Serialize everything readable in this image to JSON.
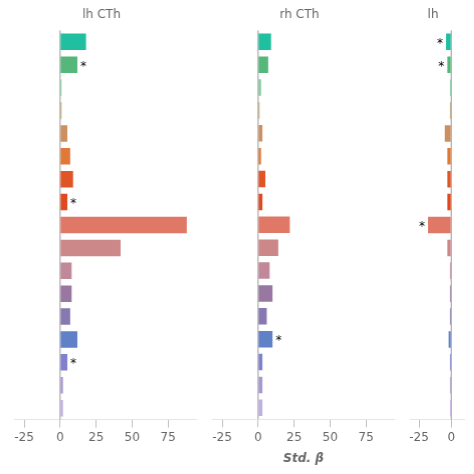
{
  "chart_data": [
    {
      "type": "bar",
      "orientation": "horizontal",
      "title": "lh CTh",
      "categories": [
        null,
        null,
        null,
        null,
        null,
        null,
        null,
        null,
        null,
        null,
        null,
        null,
        null,
        null,
        null,
        null,
        null
      ],
      "values": [
        18,
        12,
        1,
        1,
        5,
        7,
        9,
        5,
        88,
        42,
        8,
        8,
        7,
        12,
        5,
        2,
        2
      ],
      "colors": [
        "#1fbfa0",
        "#55b87a",
        "#80c8a0",
        "#b8a070",
        "#cc9060",
        "#e07838",
        "#e05528",
        "#e04820",
        "#e07868",
        "#cc8888",
        "#c08898",
        "#9878a0",
        "#8878b0",
        "#6080c8",
        "#8080cc",
        "#a898d0",
        "#c0b0e0"
      ],
      "annotations": [
        {
          "text": "*",
          "index": 1
        },
        {
          "text": "*",
          "index": 7
        },
        {
          "text": "*",
          "index": 14
        }
      ],
      "xlim": [
        -32,
        95
      ],
      "xticks": [
        -25,
        0,
        25,
        50,
        75
      ],
      "grid": false,
      "legend": null,
      "tick_labels": "x"
    },
    {
      "type": "bar",
      "orientation": "horizontal",
      "title": "rh CTh",
      "xlabel": "Std. β",
      "categories": [
        null,
        null,
        null,
        null,
        null,
        null,
        null,
        null,
        null,
        null,
        null,
        null,
        null,
        null,
        null,
        null,
        null
      ],
      "values": [
        9,
        7,
        2,
        1,
        3,
        2,
        5,
        3,
        22,
        14,
        8,
        10,
        6,
        10,
        3,
        3,
        3
      ],
      "colors": [
        "#1fbfa0",
        "#55b87a",
        "#80c8a0",
        "#b8a070",
        "#cc9060",
        "#e07838",
        "#e05528",
        "#e04820",
        "#e07868",
        "#cc8888",
        "#c08898",
        "#9878a0",
        "#8878b0",
        "#6080c8",
        "#8080cc",
        "#a898d0",
        "#c0b0e0"
      ],
      "annotations": [
        {
          "text": "*",
          "index": 13
        }
      ],
      "xlim": [
        -32,
        95
      ],
      "xticks": [
        -25,
        0,
        25,
        50,
        75
      ],
      "grid": false,
      "legend": null,
      "tick_labels": "x"
    },
    {
      "type": "bar",
      "orientation": "horizontal",
      "title": "lh",
      "categories": [
        null,
        null,
        null,
        null,
        null,
        null,
        null,
        null,
        null,
        null,
        null,
        null,
        null,
        null,
        null,
        null,
        null
      ],
      "values": [
        -4,
        -3,
        -1,
        -1,
        -5,
        -3,
        -3,
        -3,
        -18,
        -3,
        -1,
        -1,
        -1,
        -2,
        -1,
        -1,
        -1
      ],
      "colors": [
        "#1fbfa0",
        "#55b87a",
        "#80c8a0",
        "#b8a070",
        "#cc9060",
        "#e07838",
        "#e05528",
        "#e04820",
        "#e07868",
        "#cc8888",
        "#c08898",
        "#9878a0",
        "#8878b0",
        "#6080c8",
        "#8080cc",
        "#a898d0",
        "#c0b0e0"
      ],
      "annotations": [
        {
          "text": "*",
          "index": 0
        },
        {
          "text": "*",
          "index": 1
        },
        {
          "text": "*",
          "index": 8
        }
      ],
      "xlim": [
        -32,
        10
      ],
      "xticks": [
        -25,
        0
      ],
      "grid": false,
      "legend": null,
      "tick_labels": "x"
    }
  ]
}
